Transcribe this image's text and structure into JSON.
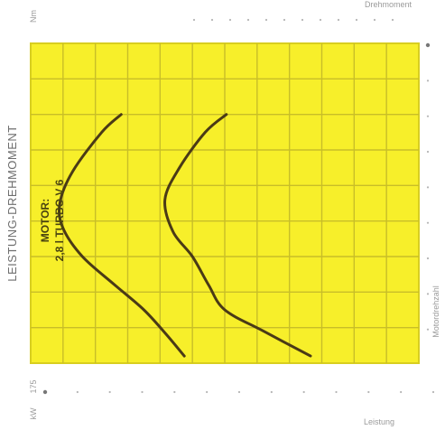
{
  "chart_data": {
    "type": "line",
    "title": "LEISTUNG-DREHMOMENT",
    "annotation_line1": "MOTOR:",
    "annotation_line2": "2,8 l TURBO V 6",
    "axis_top_unit": "Nm",
    "axis_bottom_unit": "kW",
    "axis_bottom_value": "175",
    "axis_right_label": "Motordrehzahl",
    "axis_top_right_label": "Drehmoment",
    "axis_bottom_right_label": "Leistung",
    "grid": true,
    "x_cells": 12,
    "y_cells": 9,
    "xlim": [
      0,
      12
    ],
    "ylim": [
      0,
      9
    ],
    "colors": {
      "background": "#f7ef2a",
      "grid": "#c8be28",
      "border": "#d8ce20",
      "curve": "#4a3a16"
    },
    "series": [
      {
        "x": [
          4.75,
          4.2,
          3.5,
          2.6,
          1.6,
          1.0,
          0.9,
          1.3,
          2.2,
          2.8
        ],
        "y": [
          0.2,
          0.8,
          1.5,
          2.2,
          3.0,
          3.8,
          4.5,
          5.4,
          6.5,
          7.0
        ]
      },
      {
        "x": [
          8.65,
          7.2,
          6.0,
          5.5,
          5.0,
          4.4,
          4.15,
          4.6,
          5.4,
          6.05
        ],
        "y": [
          0.2,
          0.9,
          1.5,
          2.2,
          3.0,
          3.7,
          4.6,
          5.5,
          6.5,
          7.0
        ]
      }
    ]
  }
}
